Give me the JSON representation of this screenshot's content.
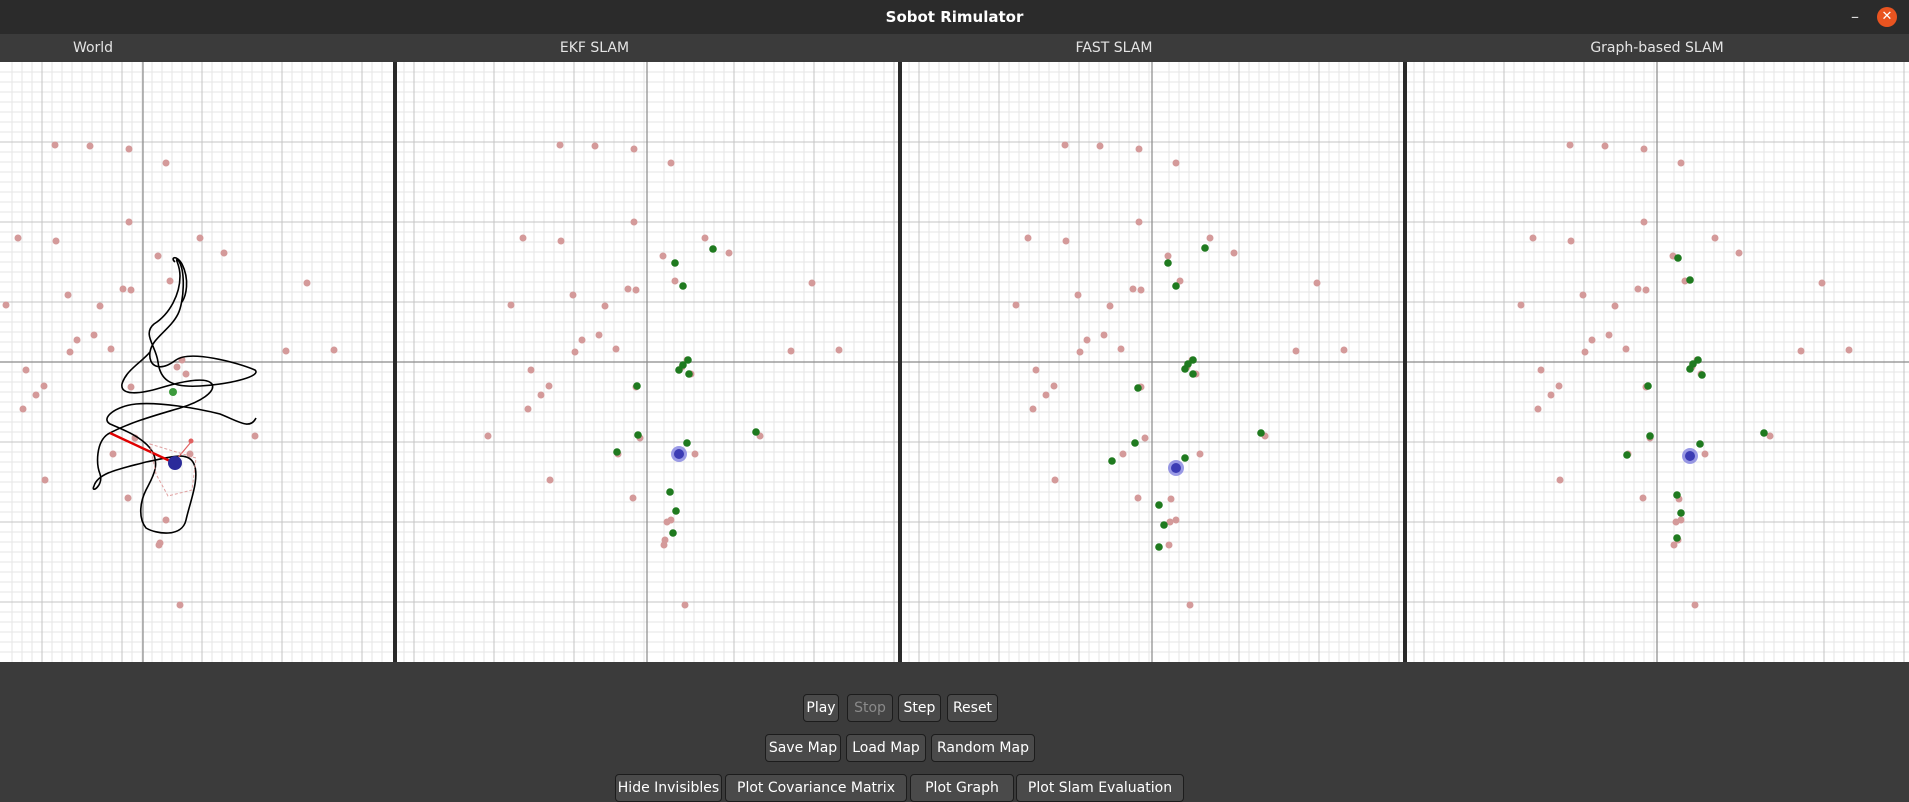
{
  "window": {
    "title": "Sobot Rimulator"
  },
  "panels": [
    {
      "label": "World"
    },
    {
      "label": "EKF SLAM"
    },
    {
      "label": "FAST SLAM"
    },
    {
      "label": "Graph-based SLAM"
    }
  ],
  "controls": {
    "row1": [
      {
        "label": "Play",
        "enabled": true
      },
      {
        "label": "Stop",
        "enabled": false
      },
      {
        "label": "Step",
        "enabled": true
      },
      {
        "label": "Reset",
        "enabled": true
      }
    ],
    "row2": [
      {
        "label": "Save Map"
      },
      {
        "label": "Load Map"
      },
      {
        "label": "Random Map"
      }
    ],
    "row3": [
      {
        "label": "Hide Invisibles"
      },
      {
        "label": "Plot Covariance Matrix"
      },
      {
        "label": "Plot Graph"
      },
      {
        "label": "Plot Slam Evaluation"
      }
    ]
  },
  "colors": {
    "landmark": "#d49a9a",
    "estimate": "#1f7a1f",
    "robot": "#2b2b9a",
    "robot_estimate": "#4b4bd4",
    "sensor": "#e00000",
    "path": "#000000"
  }
}
